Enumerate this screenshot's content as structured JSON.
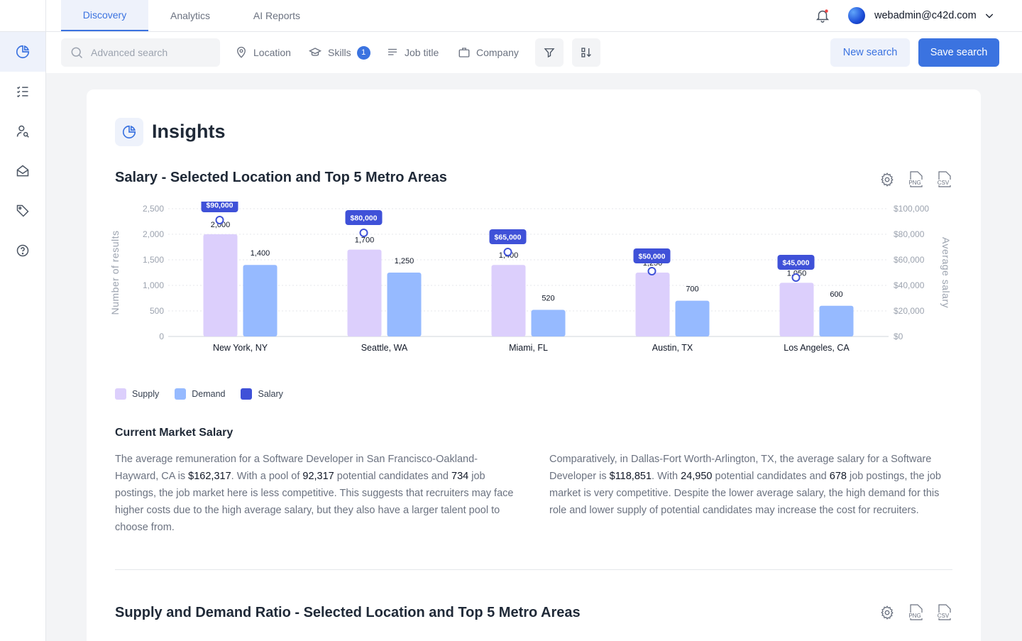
{
  "nav": {
    "tabs": [
      {
        "label": "Discovery",
        "active": true
      },
      {
        "label": "Analytics",
        "active": false
      },
      {
        "label": "AI Reports",
        "active": false
      }
    ],
    "user_email": "webadmin@c42d.com"
  },
  "sidebar": {
    "items": [
      {
        "icon": "pie-chart-icon",
        "active": true
      },
      {
        "icon": "checklist-icon",
        "active": false
      },
      {
        "icon": "user-search-icon",
        "active": false
      },
      {
        "icon": "mail-icon",
        "active": false
      },
      {
        "icon": "tag-icon",
        "active": false
      },
      {
        "icon": "help-icon",
        "active": false
      }
    ]
  },
  "toolbar": {
    "search_placeholder": "Advanced search",
    "filters": {
      "location": "Location",
      "skills": "Skills",
      "skills_count": "1",
      "job_title": "Job title",
      "company": "Company"
    },
    "new_search": "New search",
    "save_search": "Save search"
  },
  "insights": {
    "title": "Insights",
    "section1_title": "Salary - Selected Location and Top 5 Metro Areas",
    "section2_title": "Supply and Demand Ratio - Selected Location and Top 5 Metro Areas",
    "tools": {
      "png": "PNG",
      "csv": "CSV"
    },
    "market": {
      "title": "Current Market Salary",
      "left": {
        "t1": "The average remuneration for a Software Developer in San Francisco-Oakland-Hayward, CA is ",
        "salary": "$162,317",
        "t2": ". With a pool of ",
        "candidates": "92,317",
        "t3": " potential candidates and ",
        "postings": "734",
        "t4": " job postings, the job market here is less competitive. This suggests that recruiters may face higher costs due to the high average salary, but they also have a larger talent pool to choose from."
      },
      "right": {
        "t1": "Comparatively, in Dallas-Fort Worth-Arlington, TX, the average salary for a Software Developer is ",
        "salary": "$118,851",
        "t2": ". With ",
        "candidates": "24,950",
        "t3": " potential candidates and ",
        "postings": "678",
        "t4": " job postings, the job market is very competitive. Despite the lower average salary, the high demand for this role and lower supply of potential candidates may increase the cost for recruiters."
      }
    }
  },
  "colors": {
    "accent": "#3b73e0",
    "supply": "#dccffc",
    "demand": "#96baff",
    "salary": "#3f51d8"
  },
  "chart_data": {
    "type": "bar",
    "categories": [
      "New York, NY",
      "Seattle, WA",
      "Miami, FL",
      "Austin, TX",
      "Los Angeles, CA"
    ],
    "series": [
      {
        "name": "Supply",
        "values": [
          2000,
          1700,
          1400,
          1250,
          1050
        ],
        "labels": [
          "2,000",
          "1,700",
          "1,400",
          "1,250",
          "1,050"
        ]
      },
      {
        "name": "Demand",
        "values": [
          1400,
          1250,
          520,
          700,
          600
        ],
        "labels": [
          "1,400",
          "1,250",
          "520",
          "700",
          "600"
        ]
      },
      {
        "name": "Salary",
        "axis": "right",
        "values": [
          90000,
          80000,
          65000,
          50000,
          45000
        ],
        "labels": [
          "$90,000",
          "$80,000",
          "$65,000",
          "$50,000",
          "$45,000"
        ]
      }
    ],
    "ylabel": "Number of results",
    "ylabel_right": "Average salary",
    "ylim": [
      0,
      2500
    ],
    "ylim_right": [
      0,
      100000
    ],
    "yticks": [
      "0",
      "500",
      "1,000",
      "1,500",
      "2,000",
      "2,500"
    ],
    "yticks_right": [
      "$0",
      "$20,000",
      "$40,000",
      "$60,000",
      "$80,000",
      "$100,000"
    ],
    "grid": true,
    "legend": "bottom-left"
  }
}
